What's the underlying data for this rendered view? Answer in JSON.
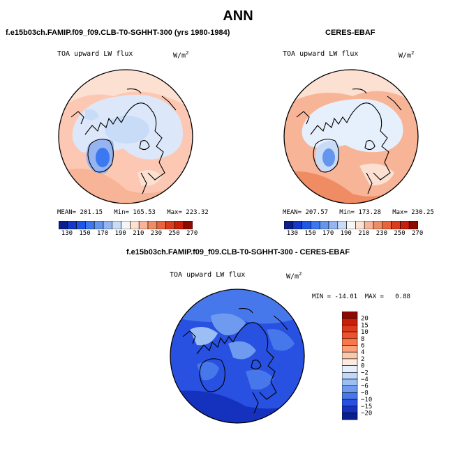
{
  "main_title": "ANN",
  "chart_data": [
    {
      "type": "heatmap",
      "projection": "north polar stereographic",
      "title": "f.e15b03ch.FAMIP.f09_f09.CLB-T0-SGHHT-300 (yrs 1980-1984)",
      "variable": "TOA upward LW flux",
      "units": "W/m",
      "units_exp": "2",
      "stats": {
        "mean_label": "MEAN=",
        "mean": "201.15",
        "min_label": "Min=",
        "min": "165.53",
        "max_label": "Max=",
        "max": "223.32"
      },
      "colorbar_ticks": [
        "130",
        "150",
        "170",
        "190",
        "210",
        "230",
        "250",
        "270"
      ],
      "colorbar_colors": [
        "#0a1e8c",
        "#1438c8",
        "#2056e8",
        "#3c78f0",
        "#6496f0",
        "#96b4f0",
        "#c8dcf8",
        "#f5f5f5",
        "#fce0d0",
        "#f8b496",
        "#f08c64",
        "#e8643c",
        "#dc3c1e",
        "#c81e0a",
        "#8c0a00"
      ]
    },
    {
      "type": "heatmap",
      "projection": "north polar stereographic",
      "title": "CERES-EBAF",
      "variable": "TOA upward LW flux",
      "units": "W/m",
      "units_exp": "2",
      "stats": {
        "mean_label": "MEAN=",
        "mean": "207.57",
        "min_label": "Min=",
        "min": "173.28",
        "max_label": "Max=",
        "max": "230.25"
      },
      "colorbar_ticks": [
        "130",
        "150",
        "170",
        "190",
        "210",
        "230",
        "250",
        "270"
      ],
      "colorbar_colors": [
        "#0a1e8c",
        "#1438c8",
        "#2056e8",
        "#3c78f0",
        "#6496f0",
        "#96b4f0",
        "#c8dcf8",
        "#f5f5f5",
        "#fce0d0",
        "#f8b496",
        "#f08c64",
        "#e8643c",
        "#dc3c1e",
        "#c81e0a",
        "#8c0a00"
      ]
    },
    {
      "type": "heatmap",
      "projection": "north polar stereographic",
      "title": "f.e15b03ch.FAMIP.f09_f09.CLB-T0-SGHHT-300 - CERES-EBAF",
      "variable": "TOA upward LW flux",
      "units": "W/m",
      "units_exp": "2",
      "stats": {
        "min_label": "MIN =",
        "min": "-14.01",
        "max_label": "MAX =",
        "max": "0.88"
      },
      "colorbar_ticks": [
        "20",
        "15",
        "10",
        "8",
        "6",
        "4",
        "2",
        "0",
        "−2",
        "−4",
        "−6",
        "−8",
        "−10",
        "−15",
        "−20"
      ],
      "colorbar_colors": [
        "#8c0a00",
        "#c81e0a",
        "#dc3c1e",
        "#f0502d",
        "#f8784b",
        "#fba078",
        "#fcc8aa",
        "#fcebe1",
        "#e6f0fc",
        "#c3d7fa",
        "#9bbef5",
        "#6e9bf0",
        "#4678eb",
        "#2850e1",
        "#1432be",
        "#0a1e8c"
      ]
    }
  ]
}
